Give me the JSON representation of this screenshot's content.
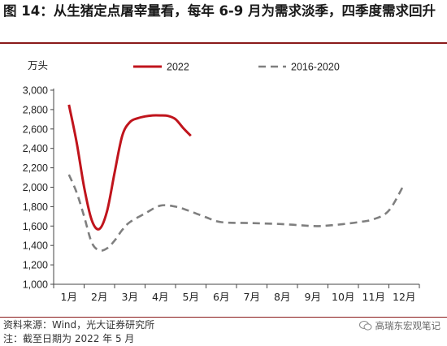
{
  "title": "图 14：从生猪定点屠宰量看，每年 6-9 月为需求淡季，四季度需求回升",
  "footer": {
    "source": "资料来源：Wind，光大证券研究所",
    "note": "注：截至日期为 2022 年 5 月",
    "watermark": "高瑞东宏观笔记"
  },
  "chart_data": {
    "type": "line",
    "unit_label": "万头",
    "categories": [
      "1月",
      "2月",
      "3月",
      "4月",
      "5月",
      "6月",
      "7月",
      "8月",
      "9月",
      "10月",
      "11月",
      "12月"
    ],
    "ylim": [
      1000,
      3000
    ],
    "yticks": [
      1000,
      1200,
      1400,
      1600,
      1800,
      2000,
      2200,
      2400,
      2600,
      2800,
      3000
    ],
    "ytick_labels": [
      "1,000",
      "1,200",
      "1,400",
      "1,600",
      "1,800",
      "2,000",
      "2,200",
      "2,400",
      "2,600",
      "2,800",
      "3,000"
    ],
    "legend_position": "top",
    "grid": false,
    "series": [
      {
        "name": "2022",
        "color": "#c0141c",
        "dash": "solid",
        "x": [
          1,
          1.25,
          1.5,
          1.75,
          2,
          2.25,
          2.5,
          2.75,
          3,
          3.25,
          3.5,
          3.75,
          4,
          4.25,
          4.5,
          4.75,
          5
        ],
        "values": [
          2850,
          2470,
          2000,
          1660,
          1570,
          1750,
          2150,
          2530,
          2670,
          2710,
          2730,
          2740,
          2740,
          2735,
          2700,
          2610,
          2530
        ]
      },
      {
        "name": "2016-2020",
        "color": "#7f7f7f",
        "dash": "dashed",
        "x": [
          1,
          1.25,
          1.5,
          1.75,
          2,
          2.25,
          2.5,
          2.75,
          3,
          3.5,
          4,
          4.5,
          5,
          5.5,
          6,
          7,
          8,
          9,
          9.5,
          10,
          10.5,
          11,
          11.5,
          12
        ],
        "values": [
          2130,
          1950,
          1700,
          1430,
          1350,
          1370,
          1450,
          1560,
          1640,
          1730,
          1810,
          1800,
          1750,
          1690,
          1640,
          1630,
          1620,
          1600,
          1605,
          1620,
          1640,
          1670,
          1760,
          2030
        ]
      }
    ]
  }
}
